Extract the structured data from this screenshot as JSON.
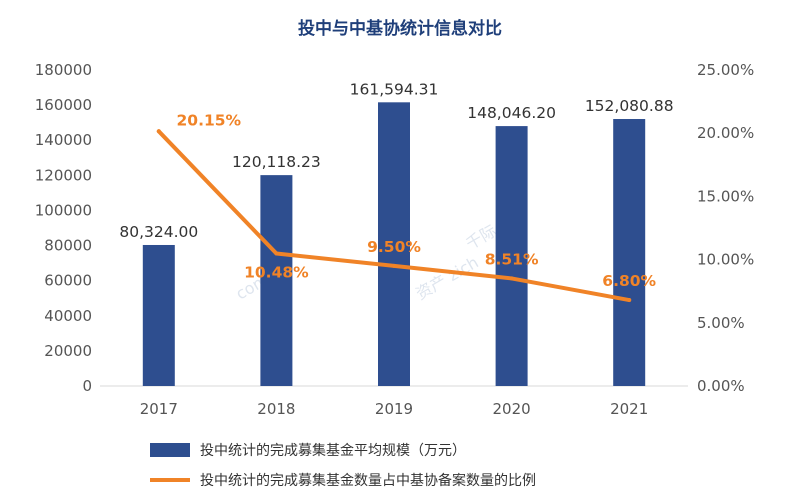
{
  "chart_data": {
    "type": "bar+line",
    "title": "投中与中基协统计信息对比",
    "categories": [
      "2017",
      "2018",
      "2019",
      "2020",
      "2021"
    ],
    "series": [
      {
        "name": "投中统计的完成募集基金平均规模（万元）",
        "type": "bar",
        "axis": "left",
        "values": [
          80324.0,
          120118.23,
          161594.31,
          148046.2,
          152080.88
        ],
        "labels": [
          "80,324.00",
          "120,118.23",
          "161,594.31",
          "148,046.20",
          "152,080.88"
        ]
      },
      {
        "name": "投中统计的完成募集基金数量占中基协备案数量的比例",
        "type": "line",
        "axis": "right",
        "values": [
          20.15,
          10.48,
          9.5,
          8.51,
          6.8
        ],
        "labels": [
          "20.15%",
          "10.48%",
          "9.50%",
          "8.51%",
          "6.80%"
        ]
      }
    ],
    "y_left": {
      "min": 0,
      "max": 180000,
      "ticks": [
        "0",
        "20000",
        "40000",
        "60000",
        "80000",
        "100000",
        "120000",
        "140000",
        "160000",
        "180000"
      ]
    },
    "y_right": {
      "min": 0,
      "max": 25,
      "ticks": [
        "0.00%",
        "5.00%",
        "10.00%",
        "15.00%",
        "20.00%",
        "25.00%"
      ]
    },
    "colors": {
      "bar": "#2e4e8f",
      "line": "#f08327",
      "title": "#1f3f7a"
    },
    "legend": "bottom",
    "grid": false
  }
}
